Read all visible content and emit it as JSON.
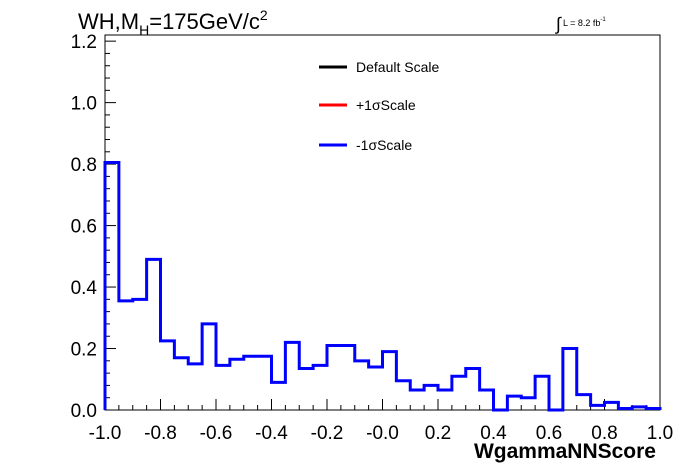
{
  "title": {
    "prefix": "WH,M",
    "subscript": "H",
    "suffix": "=175GeV/c",
    "superscript": "2"
  },
  "luminosity": {
    "symbol": "∫",
    "text": "L = 8.2 fb",
    "superscript": "-1"
  },
  "legend": {
    "entries": [
      {
        "label": "Default Scale",
        "color": "#000000"
      },
      {
        "label": "+1σScale",
        "color": "#ff0000"
      },
      {
        "label": "-1σScale",
        "color": "#0000ff"
      }
    ]
  },
  "chart_data": {
    "type": "histogram",
    "xlabel": "WgammaNNScore",
    "xlim": [
      -1.0,
      1.0
    ],
    "ylim": [
      0.0,
      1.22
    ],
    "x_ticks": [
      "-1.0",
      "-0.8",
      "-0.6",
      "-0.4",
      "-0.2",
      "-0.0",
      "0.2",
      "0.4",
      "0.6",
      "0.8",
      "1.0"
    ],
    "x_tick_values": [
      -1.0,
      -0.8,
      -0.6,
      -0.4,
      -0.2,
      0.0,
      0.2,
      0.4,
      0.6,
      0.8,
      1.0
    ],
    "y_ticks": [
      "0.0",
      "0.2",
      "0.4",
      "0.6",
      "0.8",
      "1.0",
      "1.2"
    ],
    "y_tick_values": [
      0.0,
      0.2,
      0.4,
      0.6,
      0.8,
      1.0,
      1.2
    ],
    "bin_edges": [
      -1.0,
      -0.95,
      -0.9,
      -0.85,
      -0.8,
      -0.75,
      -0.7,
      -0.65,
      -0.6,
      -0.55,
      -0.5,
      -0.45,
      -0.4,
      -0.35,
      -0.3,
      -0.25,
      -0.2,
      -0.15,
      -0.1,
      -0.05,
      0.0,
      0.05,
      0.1,
      0.15,
      0.2,
      0.25,
      0.3,
      0.35,
      0.4,
      0.45,
      0.5,
      0.55,
      0.6,
      0.65,
      0.7,
      0.75,
      0.8,
      0.85,
      0.9,
      0.95,
      1.0
    ],
    "bin_edges_visible_count": 41,
    "series": [
      {
        "name": "-1σScale",
        "color": "#0000ff",
        "values": [
          0.805,
          0.355,
          0.36,
          0.49,
          0.225,
          0.17,
          0.15,
          0.28,
          0.145,
          0.165,
          0.175,
          0.175,
          0.09,
          0.22,
          0.135,
          0.145,
          0.21,
          0.21,
          0.16,
          0.14,
          0.19,
          0.095,
          0.065,
          0.08,
          0.065,
          0.11,
          0.135,
          0.065,
          0.0,
          0.045,
          0.04,
          0.11,
          0.0,
          0.2,
          0.05,
          0.015,
          0.025,
          0.005,
          0.01,
          0.005
        ]
      }
    ]
  }
}
